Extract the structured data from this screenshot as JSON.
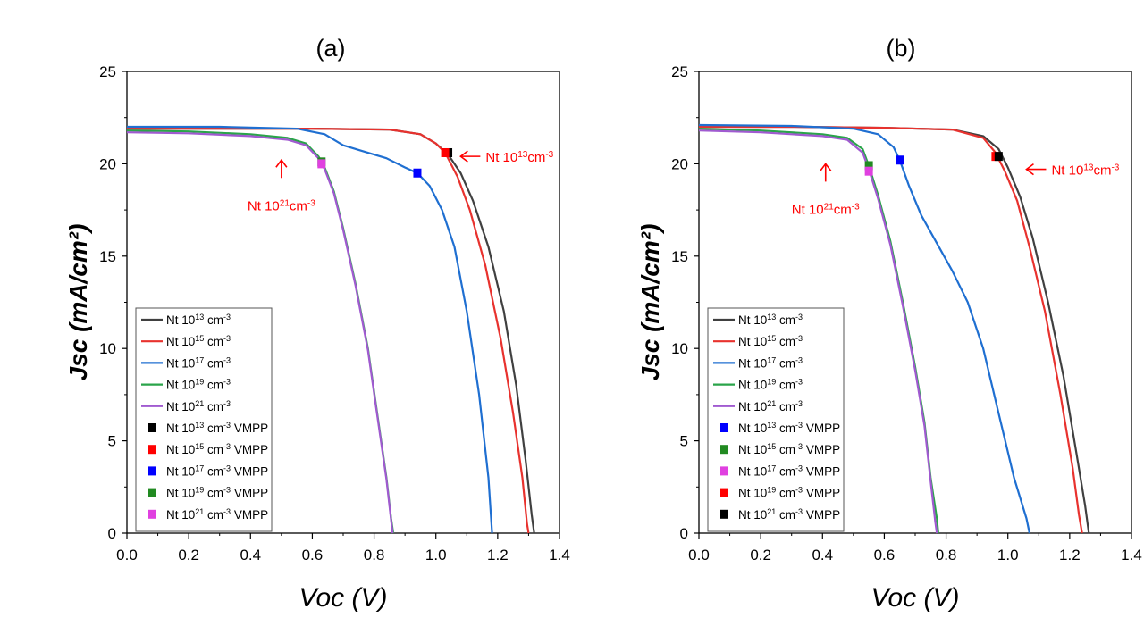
{
  "chart_data": [
    {
      "type": "line",
      "title": "(a)",
      "xlabel": "Voc (V)",
      "ylabel": "Jsc (mA/cm²)",
      "xlim": [
        0,
        1.4
      ],
      "ylim": [
        0,
        25
      ],
      "xticks": [
        "0.0",
        "0.2",
        "0.4",
        "0.6",
        "0.8",
        "1.0",
        "1.2",
        "1.4"
      ],
      "yticks": [
        "0",
        "5",
        "10",
        "15",
        "20",
        "25"
      ],
      "grid": false,
      "legend_position": "bottom-left",
      "series": [
        {
          "name": "Nt 10^13 cm^-3",
          "color": "#404040",
          "points": [
            [
              0,
              21.9
            ],
            [
              0.3,
              21.9
            ],
            [
              0.6,
              21.9
            ],
            [
              0.85,
              21.85
            ],
            [
              0.95,
              21.6
            ],
            [
              1.0,
              21.1
            ],
            [
              1.04,
              20.5
            ],
            [
              1.08,
              19.5
            ],
            [
              1.12,
              18.0
            ],
            [
              1.17,
              15.5
            ],
            [
              1.22,
              12.0
            ],
            [
              1.26,
              8.0
            ],
            [
              1.29,
              4.0
            ],
            [
              1.31,
              1.0
            ],
            [
              1.318,
              0
            ]
          ]
        },
        {
          "name": "Nt 10^15 cm^-3",
          "color": "#e8322e",
          "points": [
            [
              0,
              21.9
            ],
            [
              0.3,
              21.9
            ],
            [
              0.6,
              21.9
            ],
            [
              0.85,
              21.85
            ],
            [
              0.95,
              21.6
            ],
            [
              1.0,
              21.1
            ],
            [
              1.03,
              20.6
            ],
            [
              1.07,
              19.3
            ],
            [
              1.11,
              17.5
            ],
            [
              1.16,
              14.5
            ],
            [
              1.21,
              10.5
            ],
            [
              1.25,
              6.5
            ],
            [
              1.28,
              3.0
            ],
            [
              1.295,
              0.5
            ],
            [
              1.3,
              0
            ]
          ]
        },
        {
          "name": "Nt 10^17 cm^-3",
          "color": "#1f6fd1",
          "points": [
            [
              0,
              22.0
            ],
            [
              0.3,
              22.0
            ],
            [
              0.55,
              21.9
            ],
            [
              0.64,
              21.6
            ],
            [
              0.7,
              21.0
            ],
            [
              0.76,
              20.7
            ],
            [
              0.84,
              20.3
            ],
            [
              0.9,
              19.8
            ],
            [
              0.94,
              19.5
            ],
            [
              0.98,
              18.8
            ],
            [
              1.02,
              17.5
            ],
            [
              1.06,
              15.5
            ],
            [
              1.1,
              12.0
            ],
            [
              1.14,
              7.5
            ],
            [
              1.17,
              3.0
            ],
            [
              1.18,
              0.5
            ],
            [
              1.182,
              0
            ]
          ]
        },
        {
          "name": "Nt 10^19 cm^-3",
          "color": "#2aa44a",
          "points": [
            [
              0,
              21.8
            ],
            [
              0.2,
              21.75
            ],
            [
              0.4,
              21.6
            ],
            [
              0.52,
              21.4
            ],
            [
              0.58,
              21.1
            ],
            [
              0.62,
              20.4
            ],
            [
              0.64,
              19.8
            ],
            [
              0.67,
              18.5
            ],
            [
              0.7,
              16.5
            ],
            [
              0.74,
              13.5
            ],
            [
              0.78,
              10.0
            ],
            [
              0.81,
              6.5
            ],
            [
              0.84,
              3.0
            ],
            [
              0.855,
              0.8
            ],
            [
              0.862,
              0
            ]
          ]
        },
        {
          "name": "Nt 10^21 cm^-3",
          "color": "#a05ad0",
          "points": [
            [
              0,
              21.7
            ],
            [
              0.2,
              21.65
            ],
            [
              0.4,
              21.5
            ],
            [
              0.52,
              21.3
            ],
            [
              0.58,
              21.0
            ],
            [
              0.62,
              20.3
            ],
            [
              0.64,
              19.7
            ],
            [
              0.67,
              18.4
            ],
            [
              0.7,
              16.4
            ],
            [
              0.74,
              13.4
            ],
            [
              0.78,
              9.9
            ],
            [
              0.81,
              6.4
            ],
            [
              0.84,
              2.9
            ],
            [
              0.855,
              0.7
            ],
            [
              0.86,
              0
            ]
          ]
        }
      ],
      "vmpp": [
        {
          "name": "Nt 10^13 cm^-3 VMPP",
          "color": "#000000",
          "x": 1.04,
          "y": 20.6
        },
        {
          "name": "Nt 10^15 cm^-3 VMPP",
          "color": "#ff0000",
          "x": 1.03,
          "y": 20.6
        },
        {
          "name": "Nt 10^17 cm^-3 VMPP",
          "color": "#0000ff",
          "x": 0.94,
          "y": 19.5
        },
        {
          "name": "Nt 10^19 cm^-3 VMPP",
          "color": "#218a21",
          "x": 0.63,
          "y": 20.1
        },
        {
          "name": "Nt 10^21 cm^-3 VMPP",
          "color": "#e040e0",
          "x": 0.63,
          "y": 20.0
        }
      ],
      "annotations": [
        {
          "text": "Nt 10^13cm^-3",
          "color": "#ff0000",
          "x": 1.08,
          "y": 20.4,
          "arrow": "left"
        },
        {
          "text": "Nt 10^21cm^-3",
          "color": "#ff0000",
          "x": 0.5,
          "y": 20.2,
          "arrow": "up"
        }
      ]
    },
    {
      "type": "line",
      "title": "(b)",
      "xlabel": "Voc (V)",
      "ylabel": "Jsc (mA/cm²)",
      "xlim": [
        0,
        1.4
      ],
      "ylim": [
        0,
        25
      ],
      "xticks": [
        "0.0",
        "0.2",
        "0.4",
        "0.6",
        "0.8",
        "1.0",
        "1.2",
        "1.4"
      ],
      "yticks": [
        "0",
        "5",
        "10",
        "15",
        "20",
        "25"
      ],
      "grid": false,
      "legend_position": "bottom-left",
      "series": [
        {
          "name": "Nt 10^13 cm^-3",
          "color": "#404040",
          "points": [
            [
              0,
              22.0
            ],
            [
              0.3,
              22.0
            ],
            [
              0.6,
              21.95
            ],
            [
              0.82,
              21.85
            ],
            [
              0.92,
              21.5
            ],
            [
              0.97,
              20.8
            ],
            [
              1.0,
              19.8
            ],
            [
              1.04,
              18.2
            ],
            [
              1.08,
              16.0
            ],
            [
              1.13,
              12.5
            ],
            [
              1.18,
              8.5
            ],
            [
              1.22,
              4.5
            ],
            [
              1.25,
              1.5
            ],
            [
              1.262,
              0
            ]
          ]
        },
        {
          "name": "Nt 10^15 cm^-3",
          "color": "#e8322e",
          "points": [
            [
              0,
              22.0
            ],
            [
              0.3,
              22.0
            ],
            [
              0.6,
              21.95
            ],
            [
              0.82,
              21.85
            ],
            [
              0.92,
              21.4
            ],
            [
              0.96,
              20.6
            ],
            [
              0.99,
              19.6
            ],
            [
              1.03,
              18.0
            ],
            [
              1.07,
              15.5
            ],
            [
              1.12,
              12.0
            ],
            [
              1.17,
              7.5
            ],
            [
              1.21,
              3.5
            ],
            [
              1.23,
              1.0
            ],
            [
              1.24,
              0
            ]
          ]
        },
        {
          "name": "Nt 10^17 cm^-3",
          "color": "#1f6fd1",
          "points": [
            [
              0,
              22.1
            ],
            [
              0.3,
              22.05
            ],
            [
              0.5,
              21.9
            ],
            [
              0.58,
              21.6
            ],
            [
              0.63,
              20.9
            ],
            [
              0.65,
              20.2
            ],
            [
              0.68,
              18.8
            ],
            [
              0.72,
              17.2
            ],
            [
              0.77,
              15.7
            ],
            [
              0.82,
              14.2
            ],
            [
              0.87,
              12.5
            ],
            [
              0.92,
              10.0
            ],
            [
              0.97,
              6.5
            ],
            [
              1.02,
              3.0
            ],
            [
              1.06,
              0.8
            ],
            [
              1.07,
              0
            ]
          ]
        },
        {
          "name": "Nt 10^19 cm^-3",
          "color": "#2aa44a",
          "points": [
            [
              0,
              21.9
            ],
            [
              0.2,
              21.8
            ],
            [
              0.4,
              21.6
            ],
            [
              0.48,
              21.4
            ],
            [
              0.53,
              20.8
            ],
            [
              0.55,
              19.9
            ],
            [
              0.58,
              18.3
            ],
            [
              0.62,
              15.8
            ],
            [
              0.66,
              12.5
            ],
            [
              0.7,
              9.0
            ],
            [
              0.73,
              6.0
            ],
            [
              0.75,
              3.0
            ],
            [
              0.77,
              0.8
            ],
            [
              0.775,
              0
            ]
          ]
        },
        {
          "name": "Nt 10^21 cm^-3",
          "color": "#a05ad0",
          "points": [
            [
              0,
              21.8
            ],
            [
              0.2,
              21.7
            ],
            [
              0.4,
              21.5
            ],
            [
              0.48,
              21.3
            ],
            [
              0.53,
              20.6
            ],
            [
              0.55,
              19.7
            ],
            [
              0.58,
              18.1
            ],
            [
              0.62,
              15.6
            ],
            [
              0.66,
              12.3
            ],
            [
              0.7,
              8.8
            ],
            [
              0.73,
              5.8
            ],
            [
              0.75,
              2.8
            ],
            [
              0.765,
              0.6
            ],
            [
              0.77,
              0
            ]
          ]
        }
      ],
      "vmpp": [
        {
          "name": "Nt 10^13 cm^-3 VMPP",
          "color": "#0000ff",
          "x": 0.65,
          "y": 20.2
        },
        {
          "name": "Nt 10^15 cm^-3 VMPP",
          "color": "#218a21",
          "x": 0.55,
          "y": 19.9
        },
        {
          "name": "Nt 10^17 cm^-3 VMPP",
          "color": "#e040e0",
          "x": 0.55,
          "y": 19.6
        },
        {
          "name": "Nt 10^19 cm^-3 VMPP",
          "color": "#ff0000",
          "x": 0.96,
          "y": 20.4
        },
        {
          "name": "Nt 10^21 cm^-3 VMPP",
          "color": "#000000",
          "x": 0.97,
          "y": 20.4
        }
      ],
      "annotations": [
        {
          "text": "Nt 10^13cm^-3",
          "color": "#ff0000",
          "x": 1.06,
          "y": 19.7,
          "arrow": "left"
        },
        {
          "text": "Nt 10^21cm^-3",
          "color": "#ff0000",
          "x": 0.41,
          "y": 20.0,
          "arrow": "up"
        }
      ]
    }
  ]
}
